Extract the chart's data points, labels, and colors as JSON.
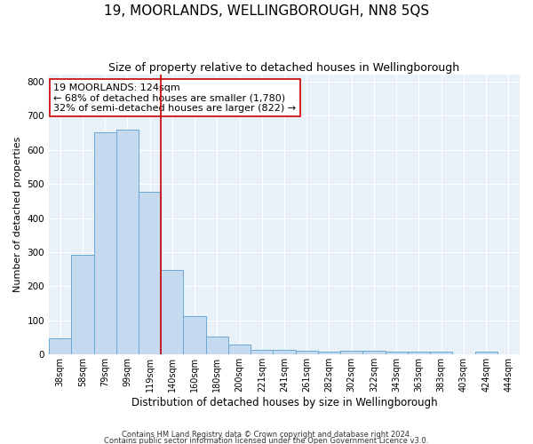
{
  "title": "19, MOORLANDS, WELLINGBOROUGH, NN8 5QS",
  "subtitle": "Size of property relative to detached houses in Wellingborough",
  "xlabel": "Distribution of detached houses by size in Wellingborough",
  "ylabel": "Number of detached properties",
  "categories": [
    "38sqm",
    "58sqm",
    "79sqm",
    "99sqm",
    "119sqm",
    "140sqm",
    "160sqm",
    "180sqm",
    "200sqm",
    "221sqm",
    "241sqm",
    "261sqm",
    "282sqm",
    "302sqm",
    "322sqm",
    "343sqm",
    "363sqm",
    "383sqm",
    "403sqm",
    "424sqm",
    "444sqm"
  ],
  "values": [
    47,
    291,
    651,
    660,
    477,
    248,
    113,
    53,
    29,
    14,
    15,
    10,
    8,
    10,
    10,
    8,
    8,
    8,
    0,
    8,
    0
  ],
  "bar_color": "#c5d9ef",
  "bar_edge_color": "#6aaad4",
  "background_color": "#e8f0f8",
  "grid_color": "#ffffff",
  "red_line_x": 4.5,
  "red_line_color": "#cc0000",
  "annotation_text": "19 MOORLANDS: 124sqm\n← 68% of detached houses are smaller (1,780)\n32% of semi-detached houses are larger (822) →",
  "annotation_box_color": "#ffffff",
  "annotation_box_edge_color": "#cc0000",
  "ylim": [
    0,
    820
  ],
  "yticks": [
    0,
    100,
    200,
    300,
    400,
    500,
    600,
    700,
    800
  ],
  "footer1": "Contains HM Land Registry data © Crown copyright and database right 2024.",
  "footer2": "Contains public sector information licensed under the Open Government Licence v3.0.",
  "title_fontsize": 11,
  "subtitle_fontsize": 9,
  "tick_fontsize": 7,
  "ylabel_fontsize": 8,
  "xlabel_fontsize": 8.5,
  "annotation_fontsize": 8,
  "footer_fontsize": 6
}
